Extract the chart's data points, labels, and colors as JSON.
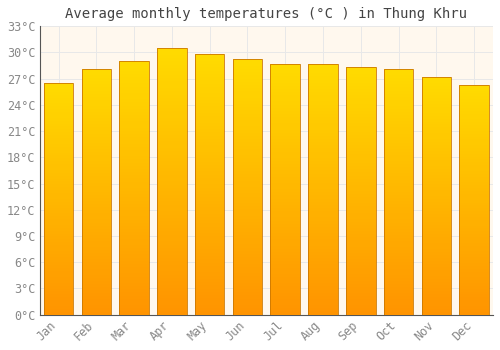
{
  "title": "Average monthly temperatures (°C ) in Thung Khru",
  "months": [
    "Jan",
    "Feb",
    "Mar",
    "Apr",
    "May",
    "Jun",
    "Jul",
    "Aug",
    "Sep",
    "Oct",
    "Nov",
    "Dec"
  ],
  "values": [
    26.5,
    28.1,
    29.0,
    30.5,
    29.8,
    29.2,
    28.7,
    28.7,
    28.3,
    28.1,
    27.2,
    26.3
  ],
  "ylim": [
    0,
    33
  ],
  "yticks": [
    0,
    3,
    6,
    9,
    12,
    15,
    18,
    21,
    24,
    27,
    30,
    33
  ],
  "bar_face_color": "#FFA500",
  "bar_edge_color": "#CC7700",
  "plot_bg_color": "#FFF8EE",
  "fig_bg_color": "#FFFFFF",
  "grid_color": "#E8E8E8",
  "title_fontsize": 10,
  "tick_fontsize": 8.5,
  "font_family": "monospace",
  "tick_color": "#888888",
  "title_color": "#444444",
  "bar_width": 0.78
}
